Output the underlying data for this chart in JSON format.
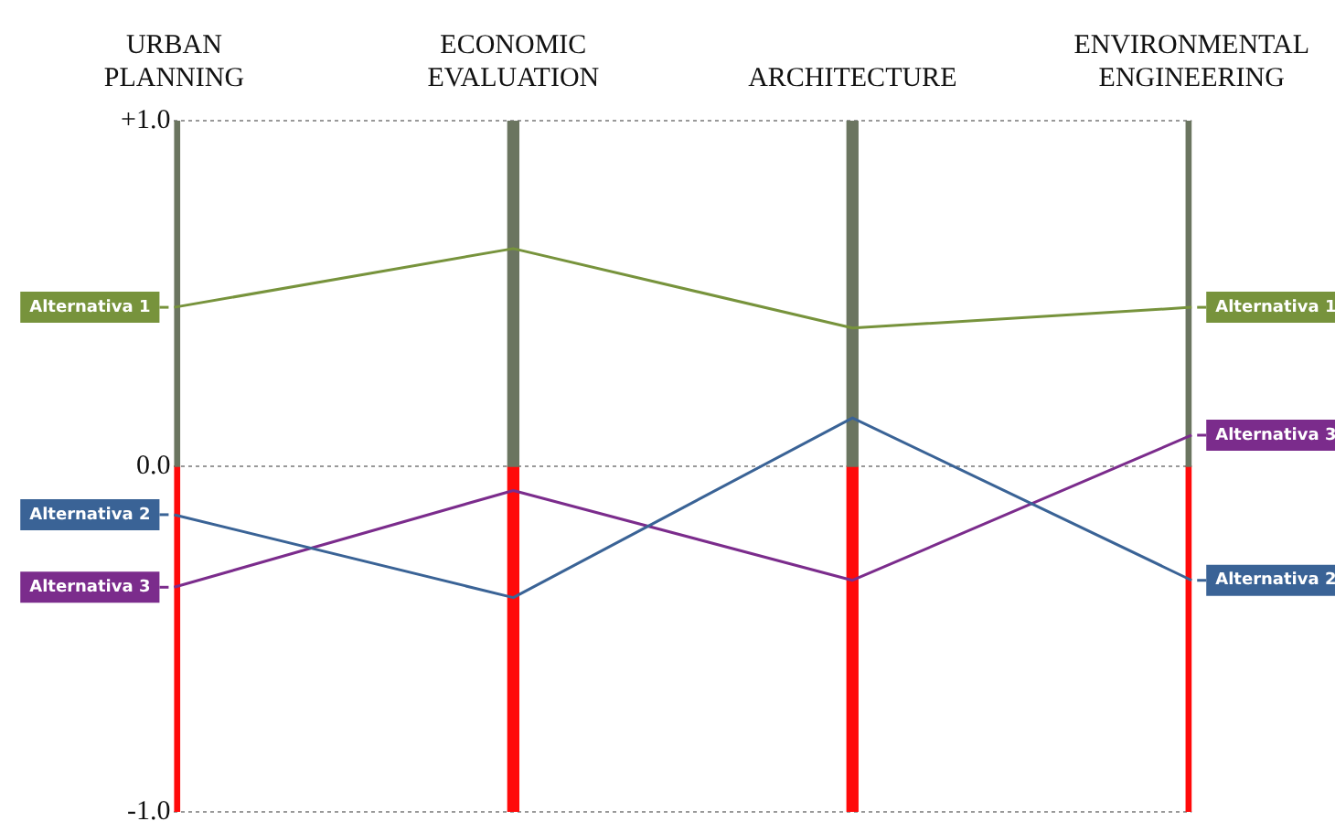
{
  "chart_data": {
    "type": "line",
    "categories": [
      "URBAN PLANNING",
      "ECONOMIC EVALUATION",
      "ARCHITECTURE",
      "ENVIRONMENTAL ENGINEERING"
    ],
    "series": [
      {
        "name": "Alternativa 1",
        "color": "#77933c",
        "values": [
          0.46,
          0.63,
          0.4,
          0.46
        ]
      },
      {
        "name": "Alternativa 2",
        "color": "#3a6396",
        "values": [
          -0.14,
          -0.38,
          0.14,
          -0.33
        ]
      },
      {
        "name": "Alternativa 3",
        "color": "#7b2c8c",
        "values": [
          -0.35,
          -0.07,
          -0.33,
          0.09
        ]
      },
      {
        "type": "bar",
        "color": "#6b7560",
        "values": [
          1,
          1,
          1,
          1
        ]
      },
      {
        "type": "bar",
        "color": "#ff0a0a",
        "values": [
          -1,
          -1,
          -1,
          -1
        ]
      }
    ],
    "ylim": [
      -1,
      1
    ],
    "yticks": [
      {
        "value": 1,
        "label": "+1.0"
      },
      {
        "value": 0,
        "label": "0.0"
      },
      {
        "value": -1,
        "label": "-1.0"
      }
    ],
    "stacked": true,
    "grid": "y",
    "legend": "right",
    "marker": "none",
    "line_style": "solid"
  }
}
